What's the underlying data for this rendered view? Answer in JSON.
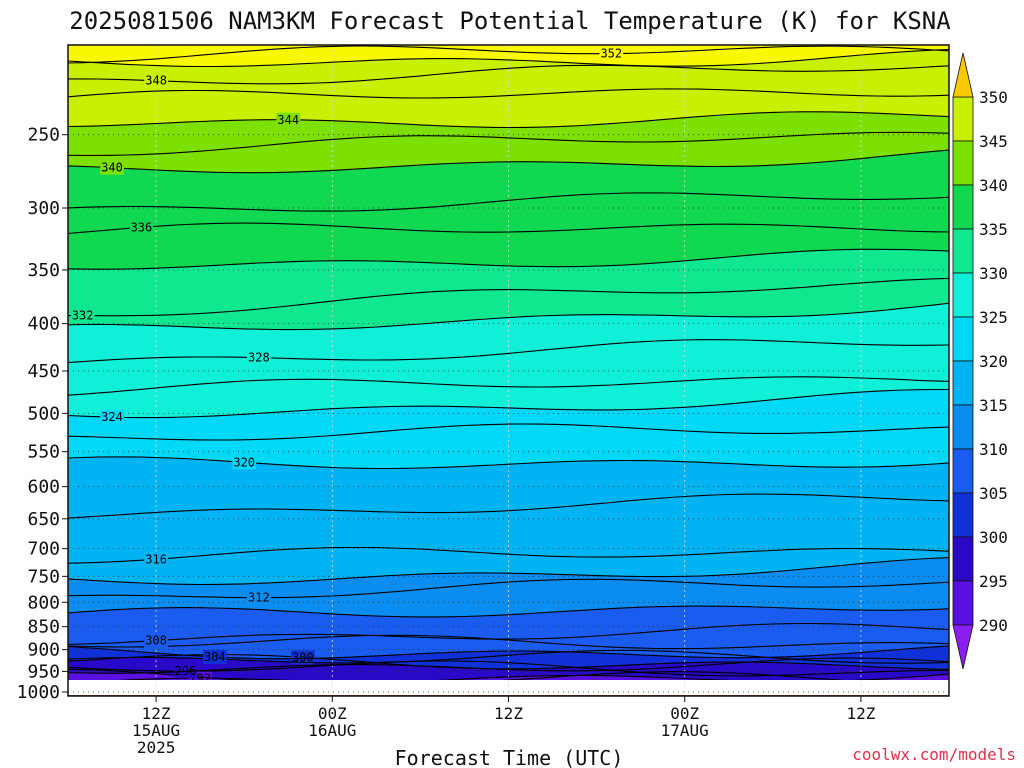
{
  "chart_data": {
    "type": "contour",
    "title": "2025081506 NAM3KM Forecast Potential Temperature (K) for KSNA",
    "xlabel": "Forecast Time (UTC)",
    "ylabel": "",
    "y_scale": "log",
    "y_inverted": true,
    "ylim": [
      1010,
      200
    ],
    "y_ticks": [
      250,
      300,
      350,
      400,
      450,
      500,
      550,
      600,
      650,
      700,
      750,
      800,
      850,
      900,
      950,
      1000
    ],
    "xlim": [
      0,
      60
    ],
    "x_ticks": [
      {
        "hour": 6,
        "lines": [
          "12Z",
          "15AUG",
          "2025"
        ]
      },
      {
        "hour": 18,
        "lines": [
          "00Z",
          "16AUG"
        ]
      },
      {
        "hour": 30,
        "lines": [
          "12Z"
        ]
      },
      {
        "hour": 42,
        "lines": [
          "00Z",
          "17AUG"
        ]
      },
      {
        "hour": 54,
        "lines": [
          "12Z"
        ]
      }
    ],
    "grid": true,
    "colorbar": {
      "ticks": [
        290,
        295,
        300,
        305,
        310,
        315,
        320,
        325,
        330,
        335,
        340,
        345,
        350
      ],
      "colors": [
        "#8a1ef0",
        "#5a10e0",
        "#2a08c8",
        "#1030d8",
        "#1a5cf0",
        "#0a8cf0",
        "#00b4f4",
        "#00d8f8",
        "#10f0d8",
        "#10e890",
        "#10d850",
        "#7ce000",
        "#c8f000",
        "#f8f800",
        "#f8c800"
      ]
    },
    "contour_interval": 4,
    "surface_color": "#a85030",
    "isentropes": [
      {
        "value": 290,
        "pressure_start": 996,
        "pressure_end": 997,
        "label_hour": null
      },
      {
        "value": 292,
        "pressure_start": 972,
        "pressure_end": 972,
        "label_hour": 9
      },
      {
        "value": 294,
        "pressure_start": 962,
        "pressure_end": 962,
        "label_hour": null
      },
      {
        "value": 296,
        "pressure_start": 943,
        "pressure_end": 950,
        "label_hour": 8
      },
      {
        "value": 298,
        "pressure_start": 936,
        "pressure_end": 940,
        "label_hour": null
      },
      {
        "value": 300,
        "pressure_start": 930,
        "pressure_end": 930,
        "label_hour": 16
      },
      {
        "value": 302,
        "pressure_start": 922,
        "pressure_end": 922,
        "label_hour": null
      },
      {
        "value": 304,
        "pressure_start": 905,
        "pressure_end": 905,
        "label_hour": 10
      },
      {
        "value": 306,
        "pressure_start": 888,
        "pressure_end": 887,
        "label_hour": null
      },
      {
        "value": 308,
        "pressure_start": 872,
        "pressure_end": 860,
        "label_hour": 6
      },
      {
        "value": 310,
        "pressure_start": 832,
        "pressure_end": 800,
        "label_hour": null
      },
      {
        "value": 312,
        "pressure_start": 790,
        "pressure_end": 760,
        "label_hour": 13
      },
      {
        "value": 314,
        "pressure_start": 758,
        "pressure_end": 730,
        "label_hour": null
      },
      {
        "value": 316,
        "pressure_start": 720,
        "pressure_end": 700,
        "label_hour": 6
      },
      {
        "value": 318,
        "pressure_start": 640,
        "pressure_end": 620,
        "label_hour": null
      },
      {
        "value": 320,
        "pressure_start": 570,
        "pressure_end": 560,
        "label_hour": 12
      },
      {
        "value": 322,
        "pressure_start": 530,
        "pressure_end": 520,
        "label_hour": null
      },
      {
        "value": 324,
        "pressure_start": 500,
        "pressure_end": 480,
        "label_hour": 3
      },
      {
        "value": 326,
        "pressure_start": 475,
        "pressure_end": 455,
        "label_hour": null
      },
      {
        "value": 328,
        "pressure_start": 438,
        "pressure_end": 420,
        "label_hour": 13
      },
      {
        "value": 330,
        "pressure_start": 410,
        "pressure_end": 380,
        "label_hour": null
      },
      {
        "value": 332,
        "pressure_start": 390,
        "pressure_end": 360,
        "label_hour": 1
      },
      {
        "value": 334,
        "pressure_start": 345,
        "pressure_end": 338,
        "label_hour": null
      },
      {
        "value": 336,
        "pressure_start": 320,
        "pressure_end": 312,
        "label_hour": 5
      },
      {
        "value": 338,
        "pressure_start": 300,
        "pressure_end": 292,
        "label_hour": null
      },
      {
        "value": 340,
        "pressure_start": 275,
        "pressure_end": 262,
        "label_hour": 3
      },
      {
        "value": 342,
        "pressure_start": 260,
        "pressure_end": 250,
        "label_hour": null
      },
      {
        "value": 344,
        "pressure_start": 242,
        "pressure_end": 240,
        "label_hour": 15
      },
      {
        "value": 346,
        "pressure_start": 230,
        "pressure_end": 222,
        "label_hour": null
      },
      {
        "value": 348,
        "pressure_start": 218,
        "pressure_end": 212,
        "label_hour": 6
      },
      {
        "value": 350,
        "pressure_start": 210,
        "pressure_end": 205,
        "label_hour": null
      },
      {
        "value": 352,
        "pressure_start": 206,
        "pressure_end": 202,
        "label_hour": 37
      }
    ],
    "credit": "coolwx.com/models"
  }
}
